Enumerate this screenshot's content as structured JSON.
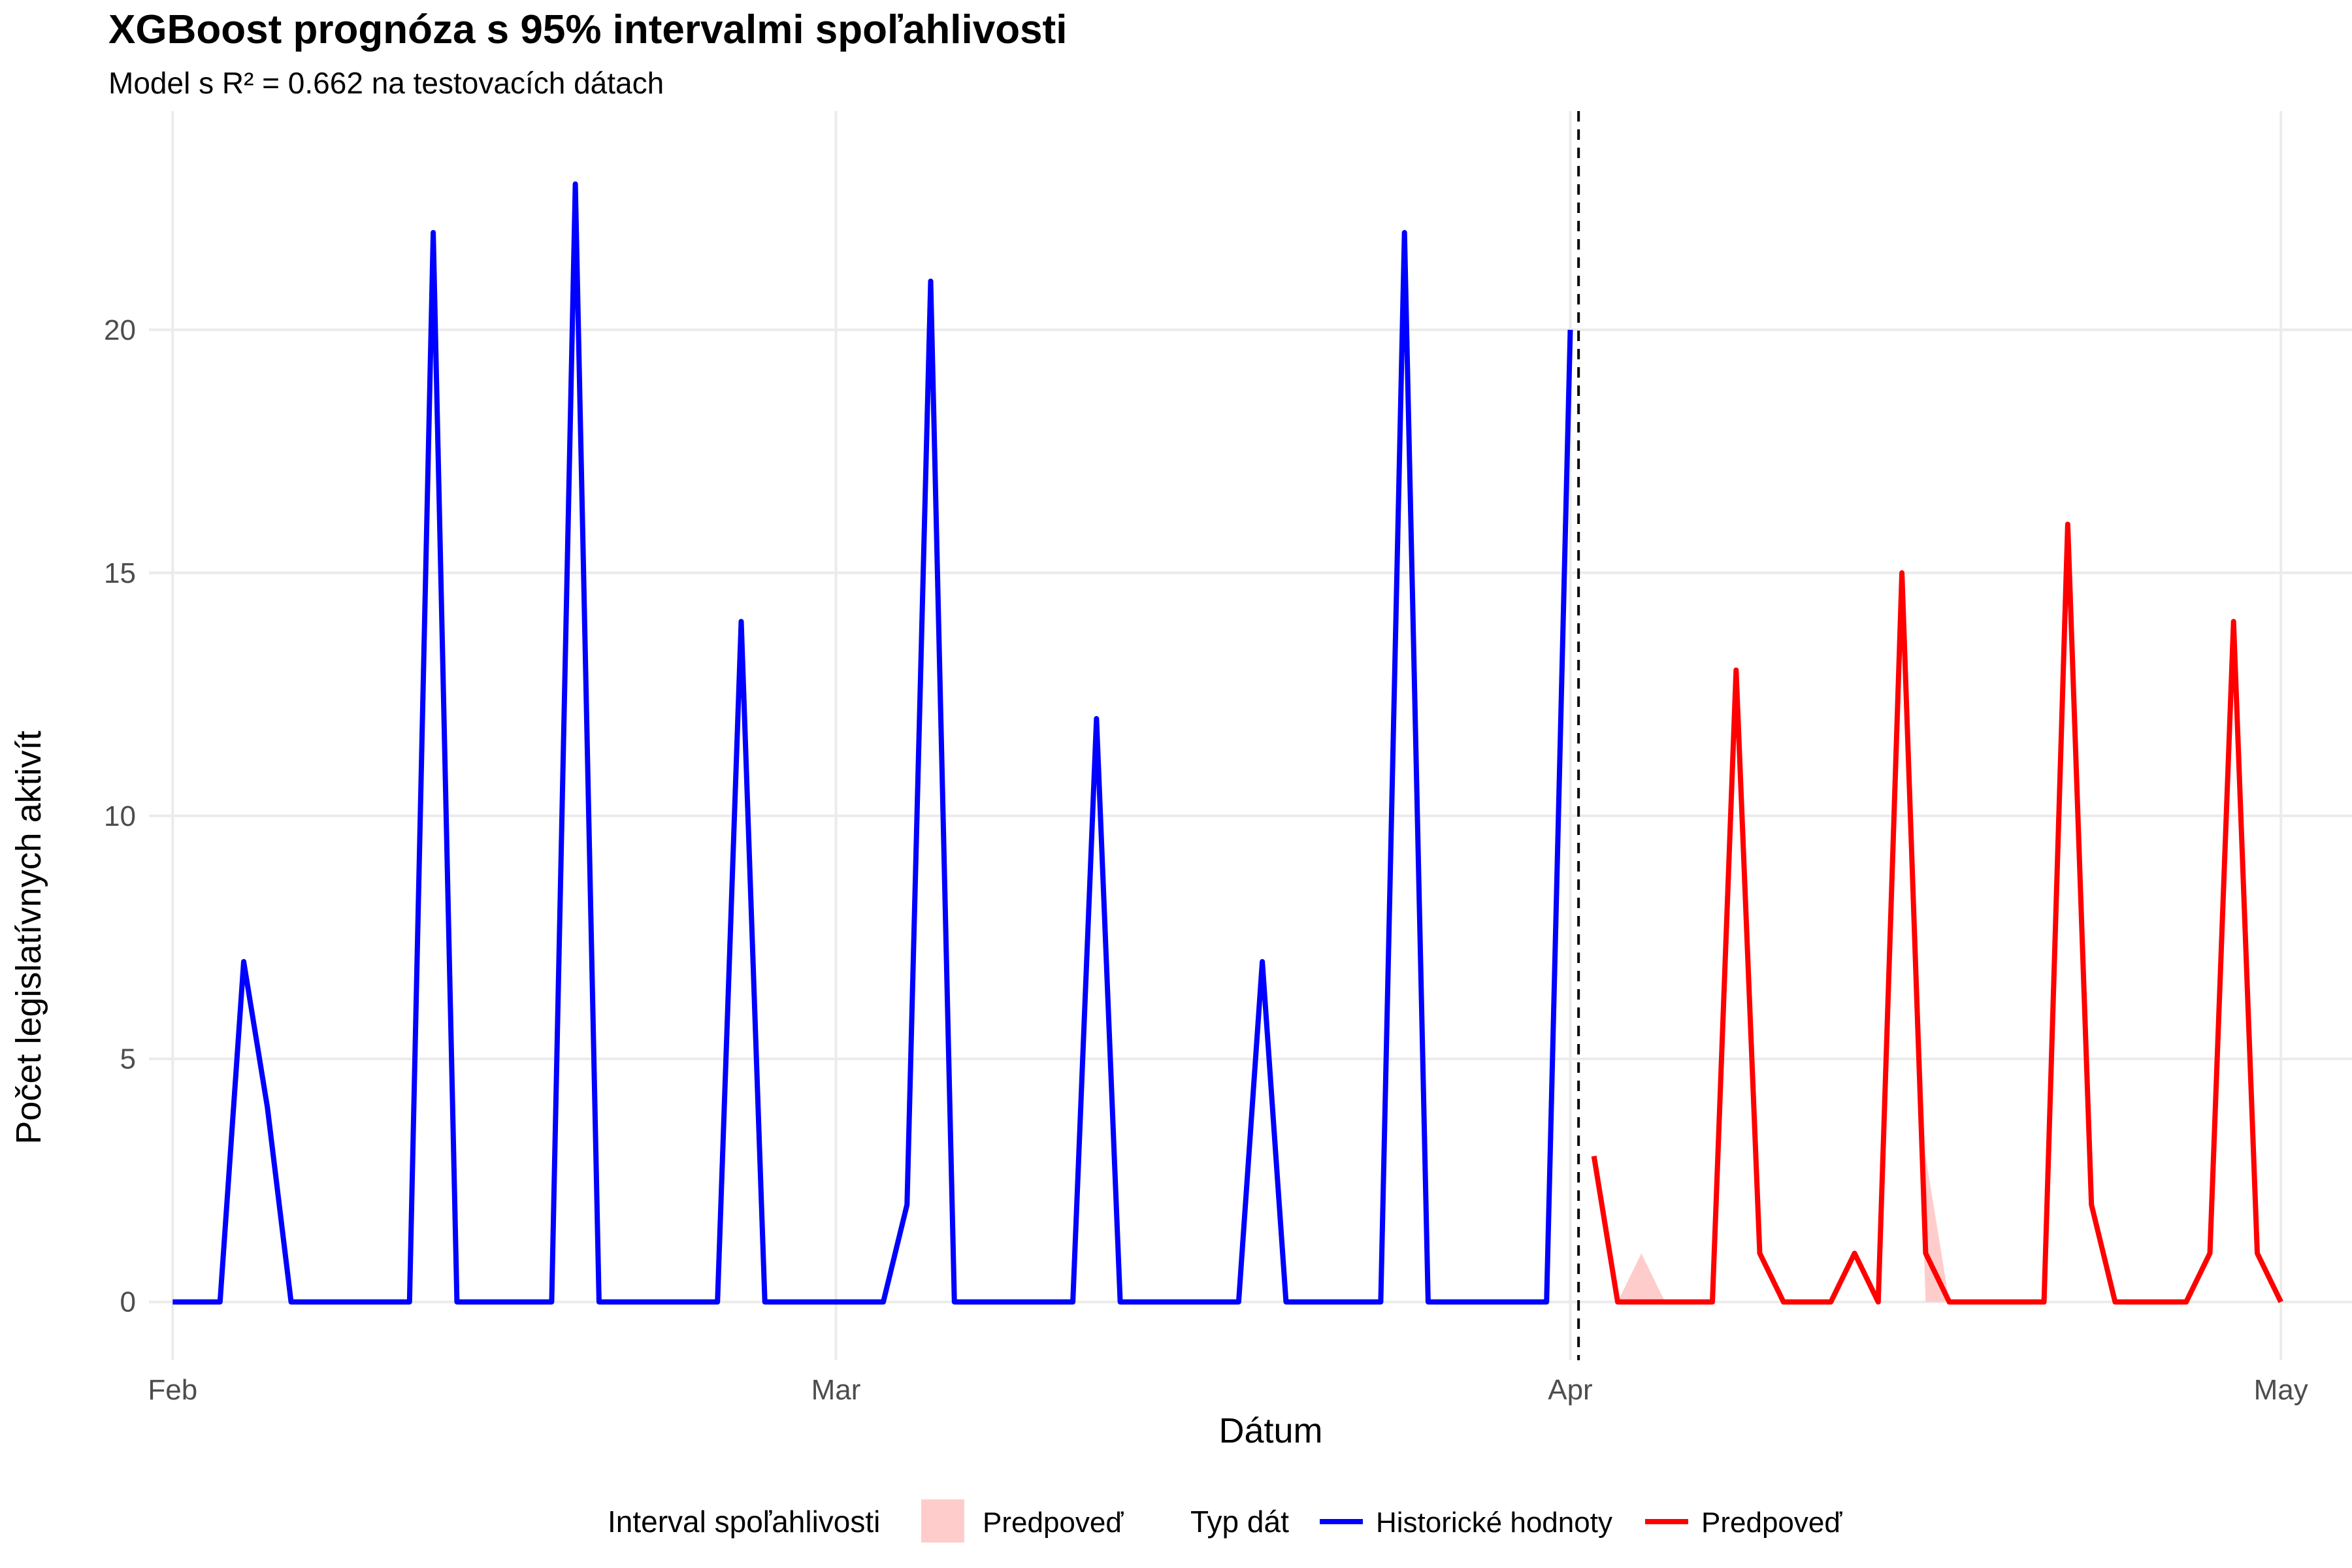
{
  "chart_data": {
    "type": "line",
    "title": "XGBoost prognóza s 95% intervalmi spoľahlivosti",
    "subtitle": "Model s R² = 0.662 na testovacích dátach",
    "xlabel": "Dátum",
    "ylabel": "Počet legislatívnych aktivít",
    "x_ticks": [
      "Feb",
      "Mar",
      "Apr",
      "May"
    ],
    "y_ticks": [
      0,
      5,
      10,
      15,
      20
    ],
    "xlim": [
      "2025-01-31",
      "2025-05-04"
    ],
    "ylim": [
      -1.2,
      24.5
    ],
    "grid": true,
    "legend_position": "bottom",
    "cutoff_date": "2025-04-01",
    "series": [
      {
        "name": "Historické hodnoty",
        "color": "#0000ff",
        "points": [
          [
            "2025-02-01",
            0
          ],
          [
            "2025-02-03",
            0
          ],
          [
            "2025-02-04",
            7
          ],
          [
            "2025-02-05",
            4
          ],
          [
            "2025-02-06",
            0
          ],
          [
            "2025-02-11",
            0
          ],
          [
            "2025-02-12",
            22
          ],
          [
            "2025-02-13",
            0
          ],
          [
            "2025-02-17",
            0
          ],
          [
            "2025-02-18",
            23
          ],
          [
            "2025-02-19",
            0
          ],
          [
            "2025-02-24",
            0
          ],
          [
            "2025-02-25",
            14
          ],
          [
            "2025-02-26",
            0
          ],
          [
            "2025-03-03",
            0
          ],
          [
            "2025-03-04",
            2
          ],
          [
            "2025-03-05",
            21
          ],
          [
            "2025-03-06",
            0
          ],
          [
            "2025-03-11",
            0
          ],
          [
            "2025-03-12",
            12
          ],
          [
            "2025-03-13",
            0
          ],
          [
            "2025-03-18",
            0
          ],
          [
            "2025-03-19",
            7
          ],
          [
            "2025-03-20",
            0
          ],
          [
            "2025-03-24",
            0
          ],
          [
            "2025-03-25",
            22
          ],
          [
            "2025-03-26",
            0
          ],
          [
            "2025-03-31",
            0
          ],
          [
            "2025-04-01",
            20
          ]
        ]
      },
      {
        "name": "Predpoveď",
        "color": "#ff0000",
        "points": [
          [
            "2025-04-02",
            3
          ],
          [
            "2025-04-03",
            0
          ],
          [
            "2025-04-04",
            0
          ],
          [
            "2025-04-05",
            0
          ],
          [
            "2025-04-06",
            0
          ],
          [
            "2025-04-07",
            0
          ],
          [
            "2025-04-08",
            13
          ],
          [
            "2025-04-09",
            1
          ],
          [
            "2025-04-10",
            0
          ],
          [
            "2025-04-11",
            0
          ],
          [
            "2025-04-12",
            0
          ],
          [
            "2025-04-13",
            1
          ],
          [
            "2025-04-14",
            0
          ],
          [
            "2025-04-15",
            15
          ],
          [
            "2025-04-16",
            1
          ],
          [
            "2025-04-17",
            0
          ],
          [
            "2025-04-18",
            0
          ],
          [
            "2025-04-19",
            0
          ],
          [
            "2025-04-20",
            0
          ],
          [
            "2025-04-21",
            0
          ],
          [
            "2025-04-22",
            16
          ],
          [
            "2025-04-23",
            2
          ],
          [
            "2025-04-24",
            0
          ],
          [
            "2025-04-25",
            0
          ],
          [
            "2025-04-26",
            0
          ],
          [
            "2025-04-27",
            0
          ],
          [
            "2025-04-28",
            1
          ],
          [
            "2025-04-29",
            14
          ],
          [
            "2025-04-30",
            1
          ],
          [
            "2025-05-01",
            0
          ]
        ]
      }
    ],
    "interval": {
      "name": "Predpoveď",
      "color": "#ffcccc",
      "points": [
        [
          "2025-04-03",
          0,
          0
        ],
        [
          "2025-04-04",
          0,
          1
        ],
        [
          "2025-04-05",
          0,
          0
        ],
        [
          "2025-04-15",
          15,
          15
        ],
        [
          "2025-04-16",
          0,
          3
        ],
        [
          "2025-04-17",
          0,
          0
        ]
      ]
    },
    "legend": {
      "fill_title": "Interval spoľahlivosti",
      "fill_label": "Predpoveď",
      "line_title": "Typ dát",
      "line_labels": [
        "Historické hodnoty",
        "Predpoveď"
      ]
    }
  }
}
